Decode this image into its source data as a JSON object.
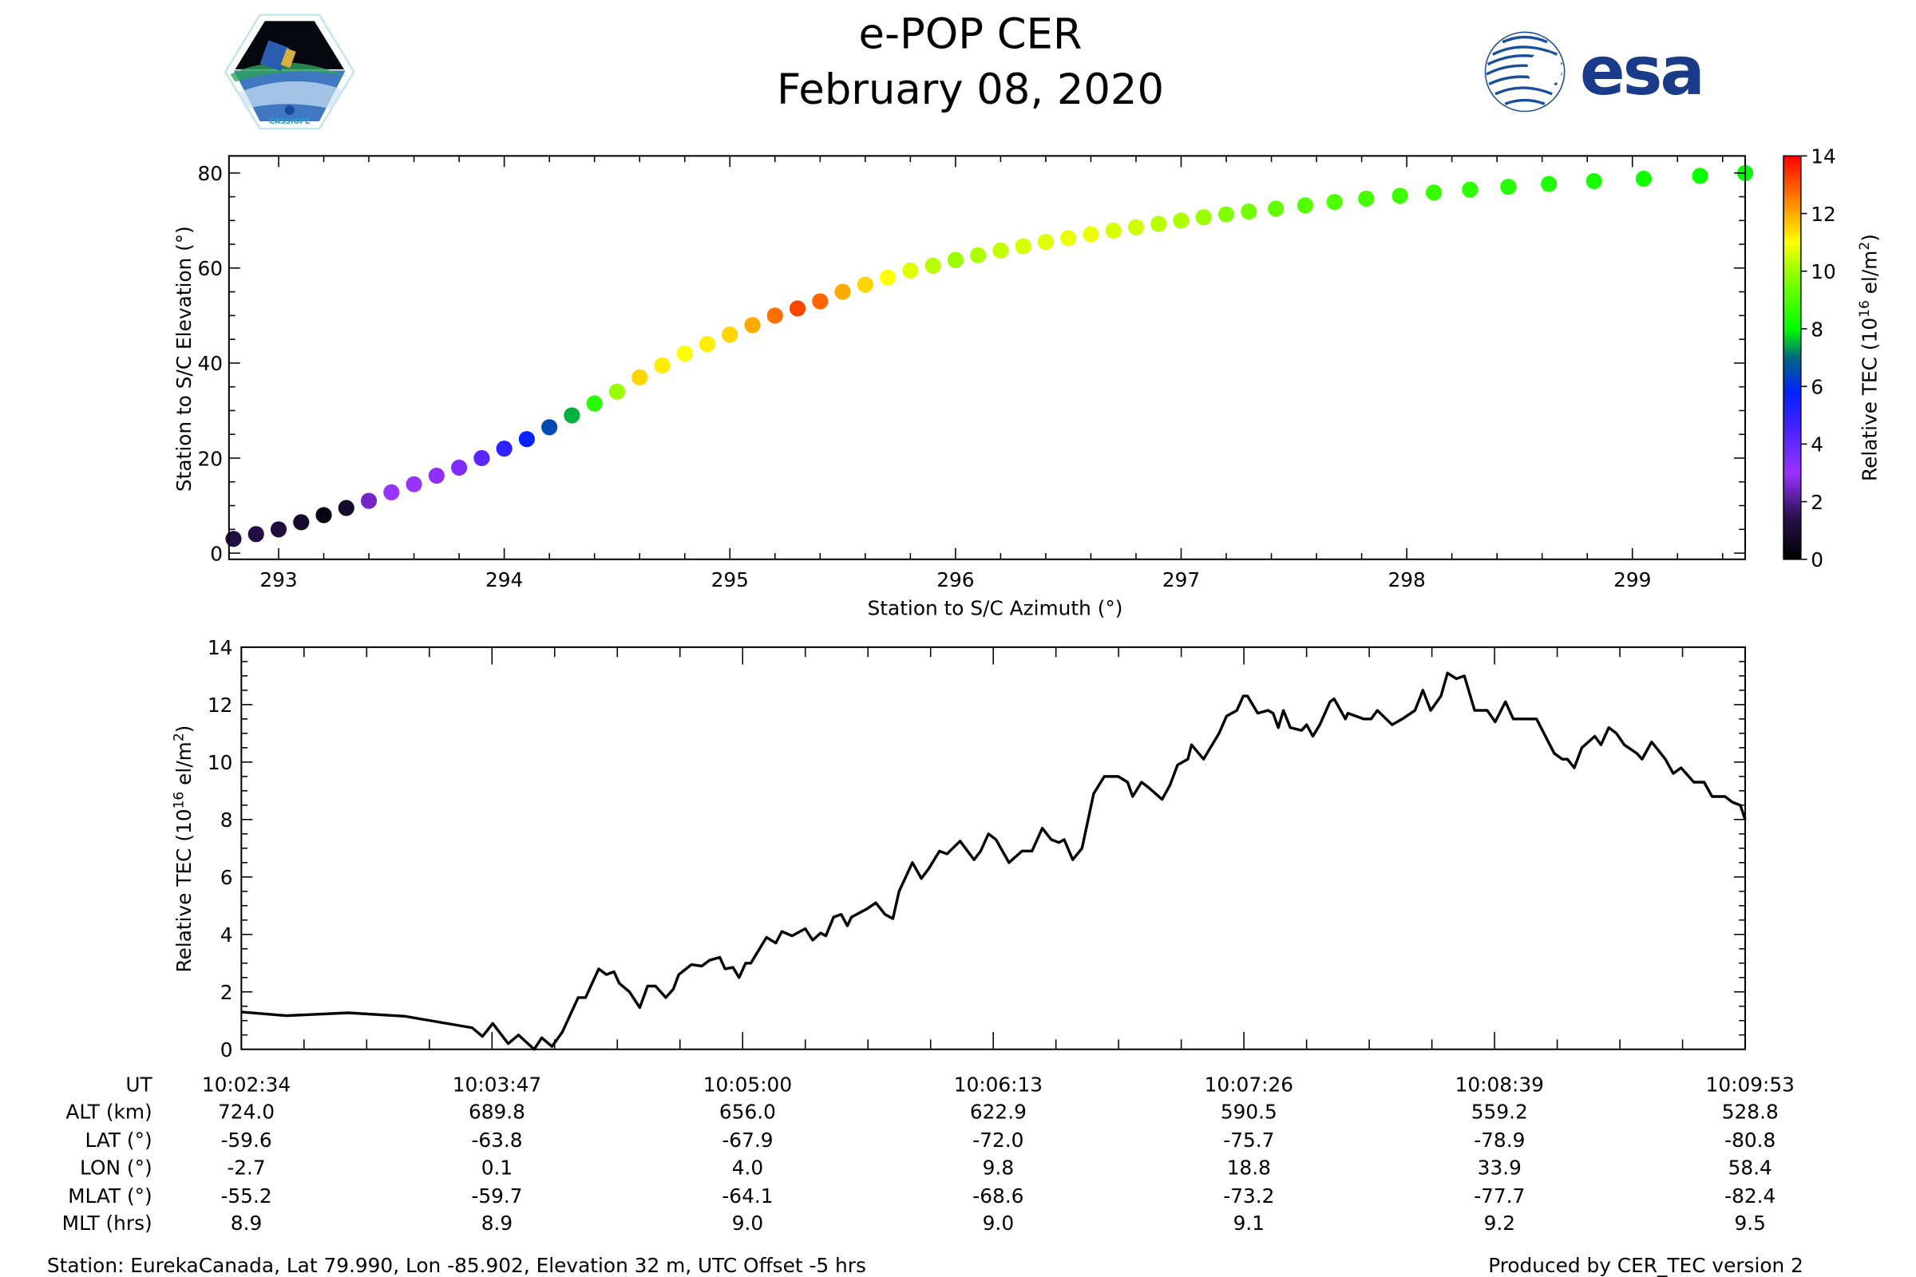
{
  "header": {
    "title": "e-POP CER",
    "date": "February 08, 2020",
    "left_logo_text": "CASSIOPE",
    "right_logo_text": "esa"
  },
  "chart_data": [
    {
      "type": "scatter",
      "xlabel": "Station to S/C Azimuth (°)",
      "ylabel": "Station to S/C Elevation (°)",
      "xlim": [
        292.78,
        299.5
      ],
      "ylim": [
        -1.3,
        83.6
      ],
      "xticks": [
        "293",
        "294",
        "295",
        "296",
        "297",
        "298",
        "299"
      ],
      "yticks": [
        "0",
        "20",
        "40",
        "60",
        "80"
      ],
      "colorbar": {
        "label_main": "Relative TEC (10",
        "label_sup1": "16",
        "label_mid": " el/m",
        "label_sup2": "2",
        "label_end": ")",
        "range": [
          0,
          14
        ],
        "ticks": [
          "0",
          "2",
          "4",
          "6",
          "8",
          "10",
          "12",
          "14"
        ],
        "colormap": [
          [
            0,
            "#000000"
          ],
          [
            1.5,
            "#2a1050"
          ],
          [
            3,
            "#9933ff"
          ],
          [
            4.5,
            "#4a22ff"
          ],
          [
            5.8,
            "#0022ff"
          ],
          [
            7,
            "#00667f"
          ],
          [
            8,
            "#00ff00"
          ],
          [
            10,
            "#99ff00"
          ],
          [
            11,
            "#ffff00"
          ],
          [
            12,
            "#ffaa00"
          ],
          [
            14,
            "#ff0000"
          ]
        ]
      },
      "points": [
        [
          292.8,
          3,
          1.2
        ],
        [
          292.9,
          4,
          1.2
        ],
        [
          293.0,
          5,
          1.2
        ],
        [
          293.1,
          6.5,
          0.8
        ],
        [
          293.2,
          8,
          0.3
        ],
        [
          293.3,
          9.5,
          0.8
        ],
        [
          293.4,
          11,
          2.5
        ],
        [
          293.5,
          12.8,
          3
        ],
        [
          293.6,
          14.5,
          3
        ],
        [
          293.7,
          16.3,
          3.2
        ],
        [
          293.8,
          18,
          3.5
        ],
        [
          293.9,
          20,
          4.2
        ],
        [
          294.0,
          22,
          5
        ],
        [
          294.1,
          24,
          5.7
        ],
        [
          294.2,
          26.5,
          6.5
        ],
        [
          294.3,
          29,
          7.5
        ],
        [
          294.4,
          31.5,
          8.5
        ],
        [
          294.5,
          34,
          10
        ],
        [
          294.6,
          37,
          11.5
        ],
        [
          294.7,
          39.5,
          11.2
        ],
        [
          294.8,
          42,
          11
        ],
        [
          294.9,
          44,
          11.2
        ],
        [
          295.0,
          46,
          11.5
        ],
        [
          295.1,
          48,
          12
        ],
        [
          295.2,
          50,
          12.7
        ],
        [
          295.3,
          51.5,
          13.2
        ],
        [
          295.4,
          53,
          12.8
        ],
        [
          295.5,
          55,
          12
        ],
        [
          295.6,
          56.5,
          11.5
        ],
        [
          295.7,
          58,
          11
        ],
        [
          295.8,
          59.5,
          10.7
        ],
        [
          295.9,
          60.5,
          10.3
        ],
        [
          296.0,
          61.7,
          10
        ],
        [
          296.1,
          62.7,
          10.2
        ],
        [
          296.2,
          63.7,
          10.4
        ],
        [
          296.3,
          64.6,
          10.6
        ],
        [
          296.4,
          65.5,
          10.7
        ],
        [
          296.5,
          66.3,
          10.8
        ],
        [
          296.6,
          67.1,
          10.8
        ],
        [
          296.7,
          67.9,
          10.6
        ],
        [
          296.8,
          68.6,
          10.5
        ],
        [
          296.9,
          69.3,
          10.3
        ],
        [
          297.0,
          70,
          10.2
        ],
        [
          297.1,
          70.7,
          10
        ],
        [
          297.2,
          71.3,
          9.7
        ],
        [
          297.3,
          71.9,
          9.5
        ],
        [
          297.42,
          72.5,
          9.3
        ],
        [
          297.55,
          73.2,
          9.1
        ],
        [
          297.68,
          73.9,
          9
        ],
        [
          297.82,
          74.6,
          8.9
        ],
        [
          297.97,
          75.2,
          8.8
        ],
        [
          298.12,
          75.9,
          8.7
        ],
        [
          298.28,
          76.5,
          8.6
        ],
        [
          298.45,
          77.1,
          8.5
        ],
        [
          298.63,
          77.7,
          8.4
        ],
        [
          298.83,
          78.3,
          8.3
        ],
        [
          299.05,
          78.8,
          8.2
        ],
        [
          299.3,
          79.4,
          8.1
        ],
        [
          299.5,
          80,
          8
        ]
      ]
    },
    {
      "type": "line",
      "ylabel_main": "Relative TEC (10",
      "ylabel_sup1": "16",
      "ylabel_mid": " el/m",
      "ylabel_sup2": "2",
      "ylabel_end": ")",
      "xlim_seconds": [
        0,
        439
      ],
      "ylim": [
        0,
        14
      ],
      "yticks": [
        "0",
        "2",
        "4",
        "6",
        "8",
        "10",
        "12",
        "14"
      ],
      "series": [
        {
          "name": "Relative TEC",
          "t_seconds": [
            0,
            13.1,
            31.2,
            47.8,
            67.4,
            70.4,
            73.4,
            77.9,
            80.9,
            85.5,
            87.7,
            90.7,
            93.7,
            98.3,
            100.5,
            104.3,
            106.6,
            108.8,
            110.3,
            113.3,
            116.3,
            118.6,
            120.9,
            123.9,
            126.1,
            127.7,
            131.4,
            134.4,
            136.7,
            139.7,
            141.2,
            143.5,
            145.3,
            147.2,
            148.7,
            153.3,
            156.0,
            157.8,
            160.8,
            164.6,
            166.8,
            169.1,
            170.6,
            172.9,
            175.1,
            176.9,
            178.1,
            181.2,
            182.7,
            185.2,
            187.9,
            190.2,
            192.0,
            195.9,
            198.5,
            200.7,
            203.8,
            206.0,
            209.8,
            213.9,
            215.8,
            218.1,
            220.3,
            224.1,
            227.9,
            230.8,
            233.8,
            236.4,
            238.7,
            240.2,
            242.7,
            245.4,
            248.8,
            251.9,
            256.0,
            258.7,
            260.2,
            262.8,
            265.0,
            268.8,
            271.1,
            273.3,
            276.3,
            277.4,
            280.9,
            285.4,
            287.6,
            290.6,
            292.5,
            293.7,
            296.7,
            299.7,
            301.2,
            302.7,
            304.2,
            306.2,
            309.5,
            311.0,
            312.8,
            314.8,
            317.8,
            319.0,
            322.3,
            323.0,
            327.6,
            329.8,
            331.6,
            335.9,
            338.9,
            342.6,
            344.9,
            347.2,
            350.2,
            352.1,
            354.7,
            357.0,
            360.0,
            363.7,
            366.0,
            369.0,
            371.3,
            375.0,
            378.1,
            381.1,
            383.3,
            385.6,
            387.1,
            389.1,
            391.3,
            395.1,
            396.9,
            399.2,
            401.4,
            403.7,
            407.4,
            408.9,
            411.7,
            415.7,
            418.0,
            420.3,
            424.0,
            427.0,
            429.3,
            433.1,
            435.3,
            437.6,
            439
          ],
          "tec": [
            1.3,
            1.17,
            1.27,
            1.15,
            0.75,
            0.45,
            0.9,
            0.2,
            0.5,
            0.0,
            0.4,
            0.1,
            0.6,
            1.8,
            1.8,
            2.8,
            2.6,
            2.7,
            2.3,
            2.0,
            1.45,
            2.2,
            2.2,
            1.8,
            2.1,
            2.6,
            2.95,
            2.9,
            3.1,
            3.2,
            2.8,
            2.85,
            2.5,
            3.0,
            3.0,
            3.9,
            3.7,
            4.1,
            3.95,
            4.2,
            3.8,
            4.05,
            3.95,
            4.6,
            4.7,
            4.3,
            4.6,
            4.8,
            4.9,
            5.1,
            4.7,
            4.55,
            5.5,
            6.5,
            5.95,
            6.3,
            6.9,
            6.8,
            7.25,
            6.6,
            6.9,
            7.5,
            7.3,
            6.5,
            6.9,
            6.9,
            7.7,
            7.3,
            7.2,
            7.3,
            6.6,
            7.0,
            8.9,
            9.5,
            9.5,
            9.3,
            8.8,
            9.3,
            9.1,
            8.7,
            9.2,
            9.9,
            10.1,
            10.6,
            10.1,
            11.0,
            11.6,
            11.8,
            12.3,
            12.3,
            11.7,
            11.8,
            11.7,
            11.2,
            11.8,
            11.2,
            11.1,
            11.3,
            10.9,
            11.3,
            12.1,
            12.2,
            11.5,
            11.7,
            11.5,
            11.5,
            11.8,
            11.3,
            11.5,
            11.8,
            12.5,
            11.8,
            12.3,
            13.1,
            12.9,
            13.0,
            11.8,
            11.8,
            11.4,
            12.1,
            11.5,
            11.5,
            11.5,
            10.8,
            10.3,
            10.1,
            10.1,
            9.8,
            10.5,
            10.9,
            10.6,
            11.2,
            11.0,
            10.6,
            10.3,
            10.1,
            10.7,
            10.1,
            9.6,
            9.8,
            9.3,
            9.3,
            8.8,
            8.8,
            8.6,
            8.5,
            8.0
          ]
        }
      ],
      "color": "#000000"
    }
  ],
  "table": {
    "rows": [
      {
        "label": "UT",
        "values": [
          "10:02:34",
          "10:03:47",
          "10:05:00",
          "10:06:13",
          "10:07:26",
          "10:08:39",
          "10:09:53"
        ]
      },
      {
        "label": "ALT (km)",
        "values": [
          "724.0",
          "689.8",
          "656.0",
          "622.9",
          "590.5",
          "559.2",
          "528.8"
        ]
      },
      {
        "label": "LAT (°)",
        "values": [
          "-59.6",
          "-63.8",
          "-67.9",
          "-72.0",
          "-75.7",
          "-78.9",
          "-80.8"
        ]
      },
      {
        "label": "LON (°)",
        "values": [
          "-2.7",
          "0.1",
          "4.0",
          "9.8",
          "18.8",
          "33.9",
          "58.4"
        ]
      },
      {
        "label": "MLAT (°)",
        "values": [
          "-55.2",
          "-59.7",
          "-64.1",
          "-68.6",
          "-73.2",
          "-77.7",
          "-82.4"
        ]
      },
      {
        "label": "MLT (hrs)",
        "values": [
          "8.9",
          "8.9",
          "9.0",
          "9.0",
          "9.1",
          "9.2",
          "9.5"
        ]
      }
    ]
  },
  "footer": {
    "station": "Station: EurekaCanada, Lat 79.990, Lon -85.902, Elevation 32 m, UTC Offset -5 hrs",
    "produced_by": "Produced by CER_TEC version 2"
  }
}
